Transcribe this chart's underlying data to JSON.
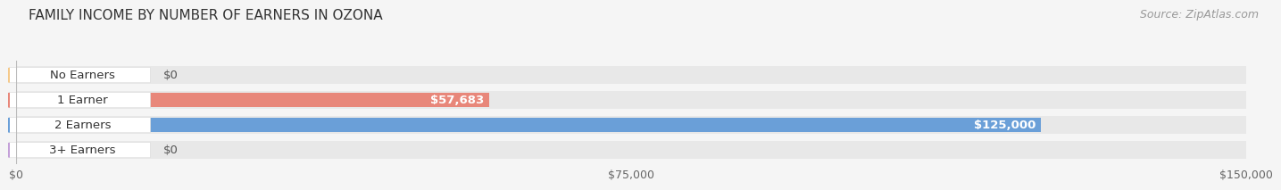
{
  "title": "FAMILY INCOME BY NUMBER OF EARNERS IN OZONA",
  "source": "Source: ZipAtlas.com",
  "categories": [
    "No Earners",
    "1 Earner",
    "2 Earners",
    "3+ Earners"
  ],
  "values": [
    0,
    57683,
    125000,
    0
  ],
  "max_value": 150000,
  "bar_colors": [
    "#f5c98a",
    "#e8877a",
    "#6a9fd8",
    "#c4a0d8"
  ],
  "bar_bg_color": "#e8e8e8",
  "label_bg_color": "#ffffff",
  "bar_labels": [
    "$0",
    "$57,683",
    "$125,000",
    "$0"
  ],
  "x_ticks": [
    0,
    75000,
    150000
  ],
  "x_tick_labels": [
    "$0",
    "$75,000",
    "$150,000"
  ],
  "background_color": "#f5f5f5",
  "title_fontsize": 11,
  "source_fontsize": 9,
  "label_fontsize": 9.5,
  "value_fontsize": 9.5
}
